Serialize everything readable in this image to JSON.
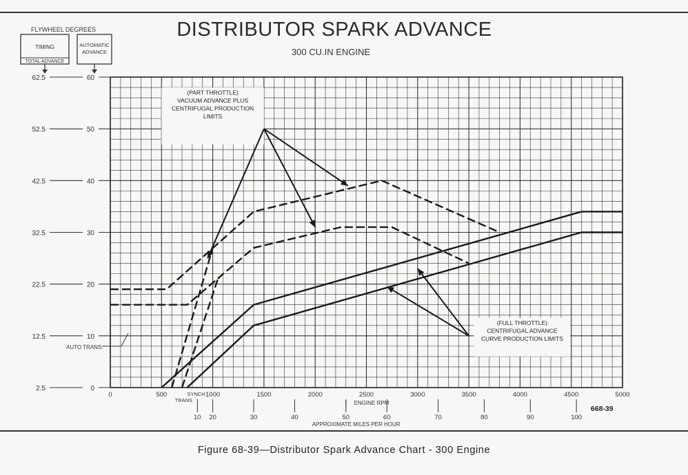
{
  "chart_data": {
    "type": "line",
    "title": "DISTRIBUTOR SPARK ADVANCE",
    "subtitle": "300 CU.IN ENGINE",
    "figure_id": "668-39",
    "xlabel": "ENGINE RPM",
    "x2label": "APPROXIMATE MILES PER HOUR",
    "xlim": [
      0,
      5000
    ],
    "ylim": [
      0,
      60
    ],
    "grid": true,
    "x_ticks": [
      "0",
      "500",
      "1000",
      "1500",
      "2000",
      "2500",
      "3000",
      "3500",
      "4000",
      "4500",
      "5000"
    ],
    "x2_ticks": [
      {
        "label": "10",
        "rpm": 850
      },
      {
        "label": "20",
        "rpm": 1000
      },
      {
        "label": "30",
        "rpm": 1400
      },
      {
        "label": "40",
        "rpm": 1800
      },
      {
        "label": "50",
        "rpm": 2300
      },
      {
        "label": "60",
        "rpm": 2700
      },
      {
        "label": "70",
        "rpm": 3200
      },
      {
        "label": "80",
        "rpm": 3650
      },
      {
        "label": "90",
        "rpm": 4100
      },
      {
        "label": "100",
        "rpm": 4550
      }
    ],
    "synch_label_1": "SYNCH",
    "synch_label_2": "TRANS",
    "header_label": "FLYWHEEL DEGREES",
    "timing_box_label": "TIMING",
    "total_advance_label": "TOTAL ADVANCE",
    "auto_box_line1": "AUTOMATIC",
    "auto_box_line2": "ADVANCE",
    "y_ticks_total": [
      "2.5",
      "12.5",
      "22.5",
      "32.5",
      "42.5",
      "52.5",
      "62.5"
    ],
    "y_ticks_auto": [
      "0",
      "10",
      "20",
      "30",
      "40",
      "50",
      "60"
    ],
    "annotations": {
      "part_throttle": [
        "(PART THROTTLE)",
        "VACUUM ADVANCE PLUS",
        "CENTRIFUGAL PRODUCTION",
        "LIMITS"
      ],
      "full_throttle": [
        "(FULL THROTTLE)",
        "CENTRIFUGAL ADVANCE",
        "CURVE PRODUCTION LIMITS"
      ],
      "auto_trans": "AUTO TRANS."
    },
    "series": [
      {
        "style": "dashed",
        "x": [
          0,
          550,
          1400,
          2650,
          3800
        ],
        "y": [
          19,
          19,
          34,
          40,
          30
        ]
      },
      {
        "style": "dashed",
        "x": [
          0,
          750,
          1400,
          2250,
          2750,
          3500
        ],
        "y": [
          16,
          16,
          27,
          31,
          31,
          24
        ]
      },
      {
        "style": "dashed",
        "x": [
          600,
          1000
        ],
        "y": [
          0,
          27
        ]
      },
      {
        "style": "dashed",
        "x": [
          700,
          1050
        ],
        "y": [
          0,
          21
        ]
      },
      {
        "style": "solid",
        "x": [
          500,
          1400,
          4600,
          5000
        ],
        "y": [
          0,
          16,
          34,
          34
        ]
      },
      {
        "style": "solid",
        "x": [
          750,
          1400,
          4600,
          5000
        ],
        "y": [
          0,
          12,
          30,
          30
        ]
      }
    ]
  },
  "caption": "Figure 68-39—Distributor Spark Advance Chart - 300 Engine"
}
